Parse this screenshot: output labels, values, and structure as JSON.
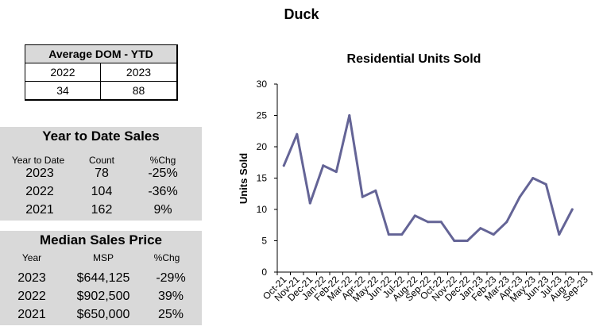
{
  "page": {
    "title": "Duck"
  },
  "dom": {
    "header": "Average DOM - YTD",
    "years": [
      "2022",
      "2023"
    ],
    "values": [
      "34",
      "88"
    ]
  },
  "ytd": {
    "title": "Year to Date Sales",
    "columns": [
      "Year to Date",
      "Count",
      "%Chg"
    ],
    "rows": [
      [
        "2023",
        "78",
        "-25%"
      ],
      [
        "2022",
        "104",
        "-36%"
      ],
      [
        "2021",
        "162",
        "9%"
      ]
    ]
  },
  "msp": {
    "title": "Median Sales Price",
    "columns": [
      "Year",
      "MSP",
      "%Chg"
    ],
    "rows": [
      [
        "2023",
        "$644,125",
        "-29%"
      ],
      [
        "2022",
        "$902,500",
        "39%"
      ],
      [
        "2021",
        "$650,000",
        "25%"
      ]
    ]
  },
  "chart_data": {
    "type": "line",
    "title": "Residential Units Sold",
    "xlabel": "",
    "ylabel": "Units Sold",
    "ylim": [
      0,
      30
    ],
    "yticks": [
      0,
      5,
      10,
      15,
      20,
      25,
      30
    ],
    "grid": false,
    "line_color": "#646496",
    "categories": [
      "Oct-21",
      "Nov-21",
      "Dec-21",
      "Jan-22",
      "Feb-22",
      "Mar-22",
      "Apr-22",
      "May-22",
      "Jun-22",
      "Jul-22",
      "Aug-22",
      "Sep-22",
      "Oct-22",
      "Nov-22",
      "Dec-22",
      "Jan-23",
      "Feb-23",
      "Mar-23",
      "Apr-23",
      "May-23",
      "Jun-23",
      "Jul-23",
      "Aug-23",
      "Sep-23"
    ],
    "values": [
      17,
      22,
      11,
      17,
      16,
      25,
      12,
      13,
      6,
      6,
      9,
      8,
      8,
      5,
      5,
      7,
      6,
      8,
      12,
      15,
      14,
      6,
      10,
      null
    ]
  }
}
